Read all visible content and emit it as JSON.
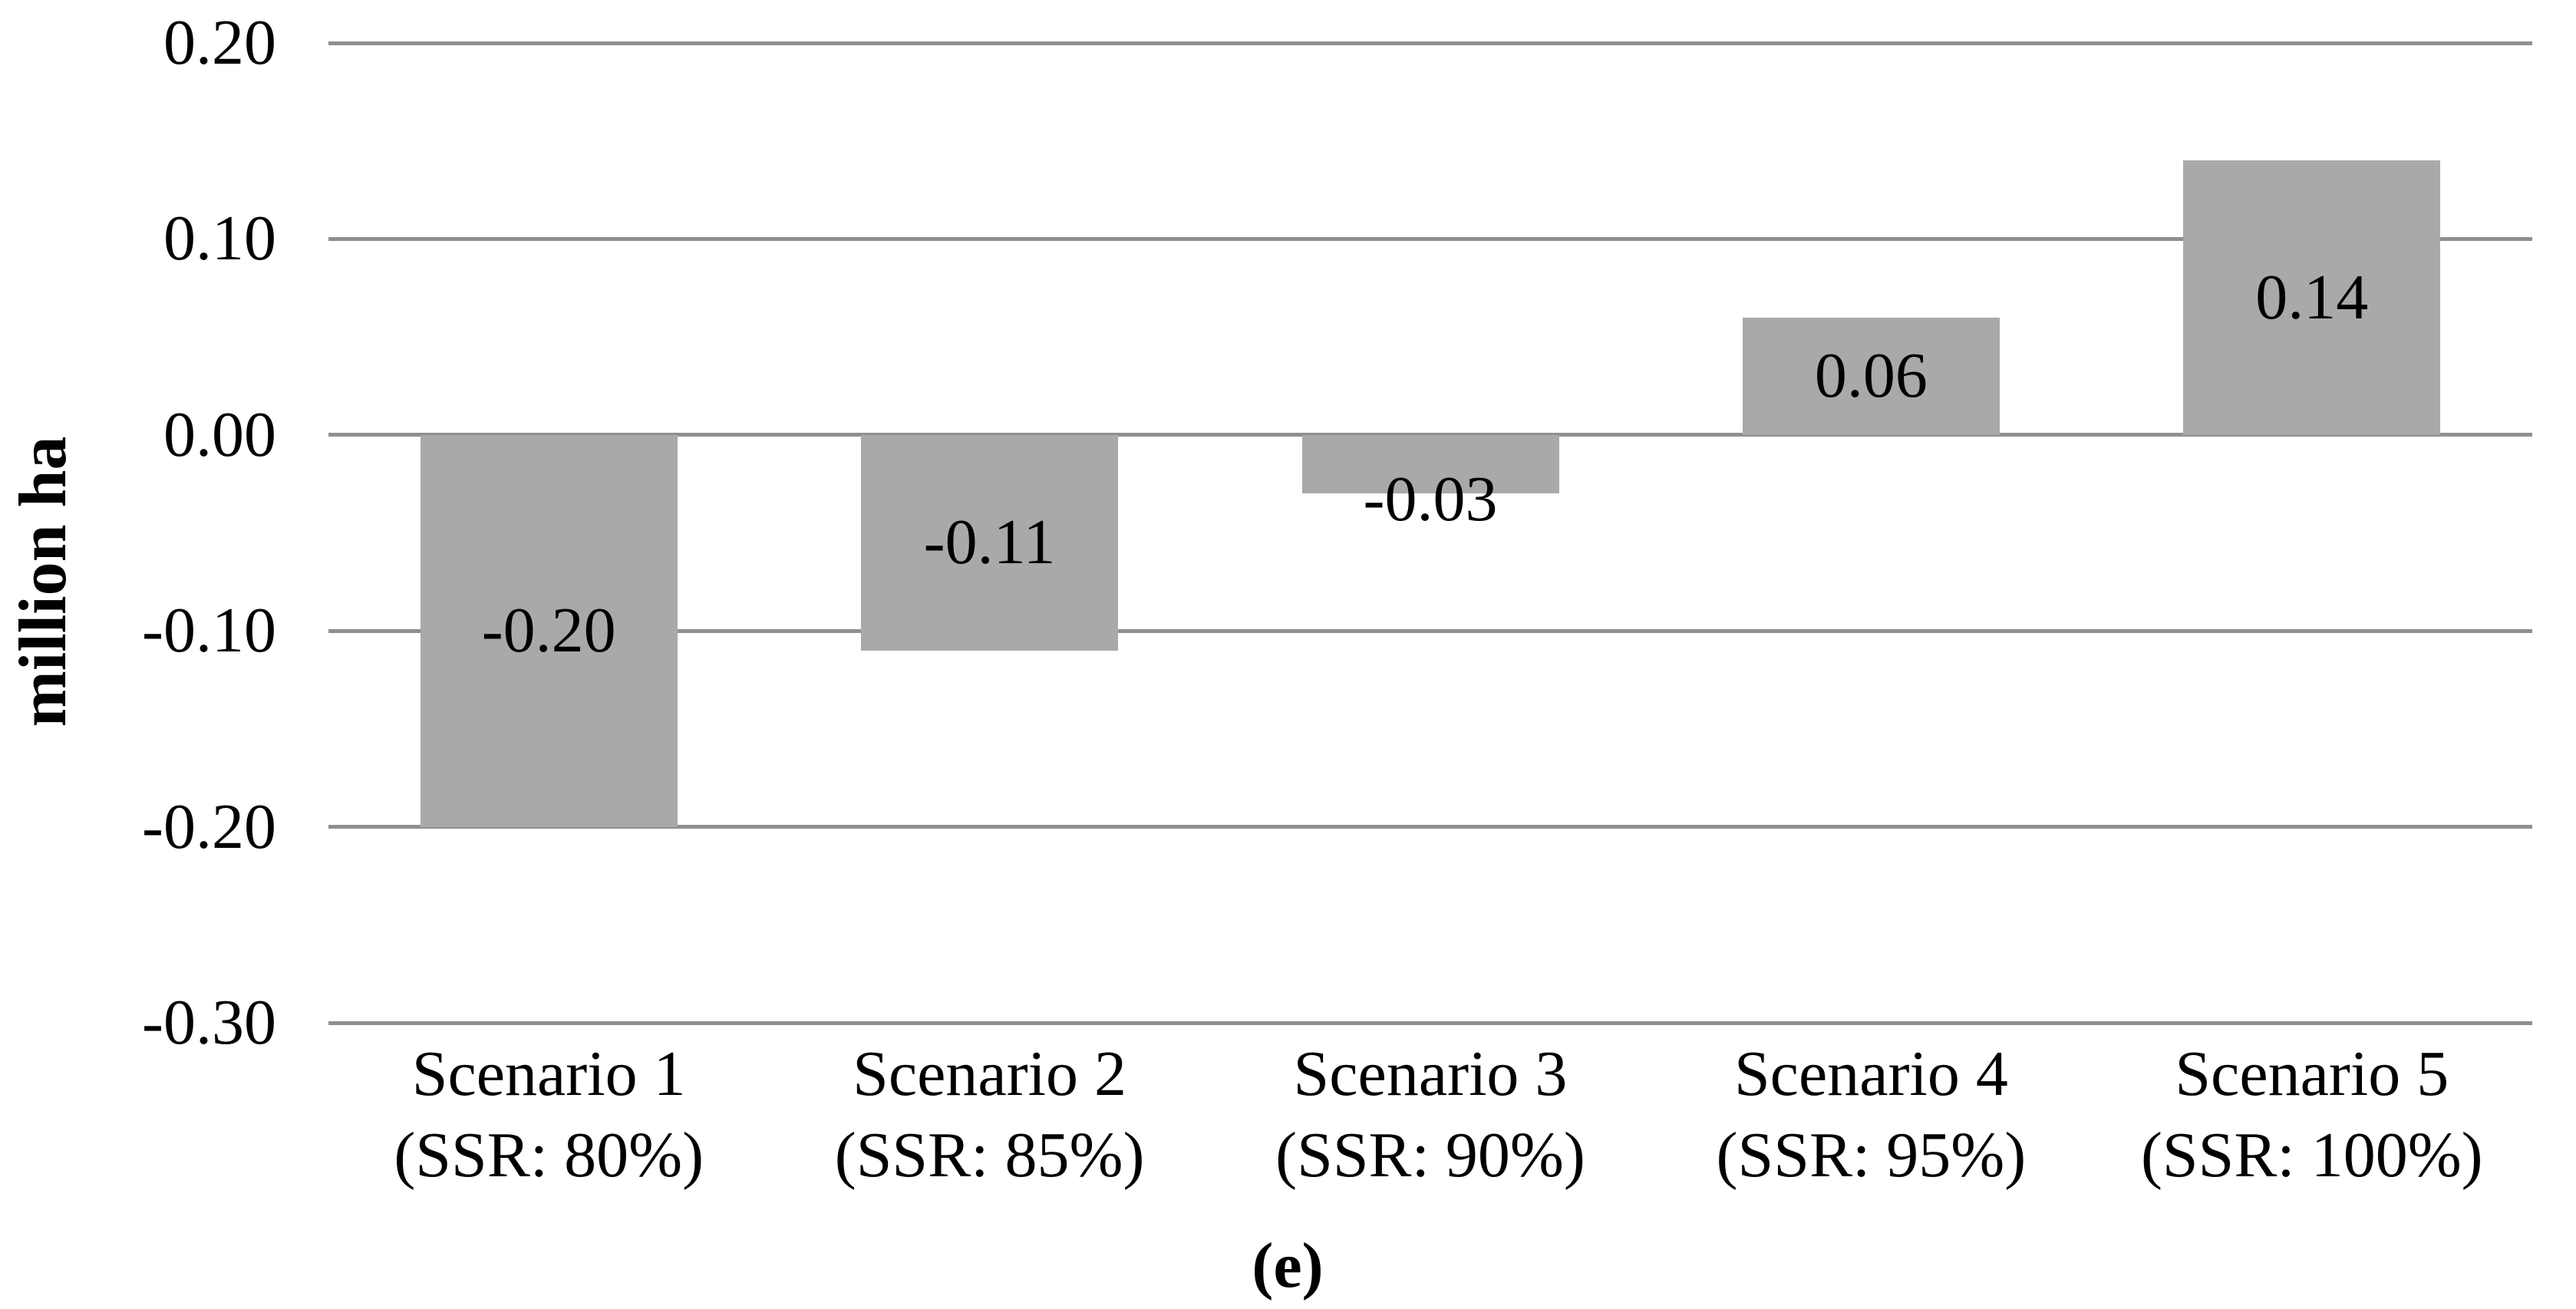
{
  "chart_data": {
    "type": "bar",
    "title": "",
    "ylabel": "million ha",
    "xlabel": "",
    "caption": "(e)",
    "categories": [
      "Scenario 1\n(SSR: 80%)",
      "Scenario 2\n(SSR: 85%)",
      "Scenario 3\n(SSR: 90%)",
      "Scenario 4\n(SSR: 95%)",
      "Scenario 5\n(SSR: 100%)"
    ],
    "values": [
      -0.2,
      -0.11,
      -0.03,
      0.06,
      0.14
    ],
    "data_labels": [
      "-0.20",
      "-0.11",
      "-0.03",
      "0.06",
      "0.14"
    ],
    "label_placement": [
      "inside-center",
      "inside-center",
      "outside-end",
      "inside-center",
      "inside-center"
    ],
    "y_ticks": [
      0.2,
      0.1,
      0.0,
      -0.1,
      -0.2,
      -0.3
    ],
    "y_tick_labels": [
      "0.20",
      "0.10",
      "0.00",
      "-0.10",
      "-0.20",
      "-0.30"
    ],
    "ylim": [
      -0.3,
      0.2
    ],
    "grid": true,
    "legend": "none",
    "series_name": "",
    "bar_color": "#A9A9A9",
    "gridline_color": "#8F8F8F",
    "text_color": "#000000"
  }
}
